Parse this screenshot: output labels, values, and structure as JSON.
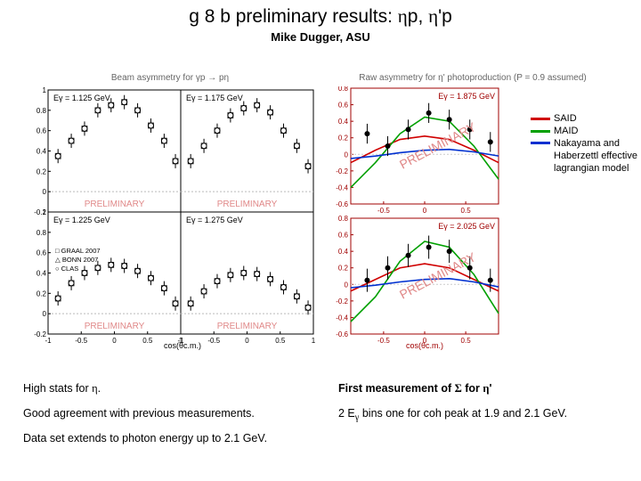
{
  "title": {
    "prefix": "g 8 b preliminary results: ",
    "sym1": "η",
    "mid": "p, ",
    "sym2": "η",
    "tail": "'p"
  },
  "subtitle": "Mike Dugger, ASU",
  "fig_caption_left": "Beam asymmetry for γp → pη",
  "fig_caption_right": "Raw asymmetry for η' photoproduction (P = 0.9 assumed)",
  "legend": {
    "said": {
      "label": "SAID",
      "color": "#d00000"
    },
    "maid": {
      "label": "MAID",
      "color": "#00a000"
    },
    "nh": {
      "label": "Nakayama and Haberzettl effective lagrangian model",
      "color": "#0030d0"
    }
  },
  "bullets_left": [
    "High stats for η.",
    "Good agreement with previous measurements.",
    "Data set extends to photon energy up to 2.1 GeV."
  ],
  "bullets_right": {
    "l1_pre": "First measurement of ",
    "l1_sym": "Σ",
    "l1_mid": " for ",
    "l1_sym2": "η",
    "l1_tail": "'",
    "l2_pre": "2 E",
    "l2_sub": "γ",
    "l2_tail": " bins one for coh peak at 1.9 and 2.1 GeV."
  },
  "left_panel_labels": {
    "p1": "Eγ = 1.125 GeV",
    "p2": "Eγ = 1.175 GeV",
    "p3": "Eγ = 1.225 GeV",
    "p4": "Eγ = 1.275 GeV",
    "prelim": "PRELIMINARY"
  },
  "left_legend_keys": [
    "□  GRAAL 2007",
    "△  BONN 2007",
    "○  CLAS"
  ],
  "left_chart_style": {
    "outer_box_color": "#000000",
    "grid_color": "#bbbbbb",
    "ylim": [
      -0.2,
      1.0
    ],
    "ytick": [
      -0.2,
      0,
      0.2,
      0.4,
      0.6,
      0.8,
      1.0
    ],
    "xlim": [
      -1,
      1
    ],
    "xtick": [
      -1,
      -0.5,
      0,
      0.5,
      1
    ],
    "xlabel": "cos(θc.m.)",
    "axis_fontsize": 8,
    "label_fontsize": 9,
    "prelim_color": "#e08888",
    "prelim_fontsize": 10,
    "marker_size": 3,
    "marker_stroke": "#000000"
  },
  "left_data": {
    "p1": {
      "x": [
        -0.85,
        -0.65,
        -0.45,
        -0.25,
        -0.05,
        0.15,
        0.35,
        0.55,
        0.75,
        0.92
      ],
      "y": [
        0.35,
        0.5,
        0.62,
        0.8,
        0.85,
        0.88,
        0.8,
        0.65,
        0.5,
        0.3
      ],
      "ey": 0.07
    },
    "p2": {
      "x": [
        -0.85,
        -0.65,
        -0.45,
        -0.25,
        -0.05,
        0.15,
        0.35,
        0.55,
        0.75,
        0.92
      ],
      "y": [
        0.3,
        0.45,
        0.6,
        0.75,
        0.82,
        0.85,
        0.78,
        0.6,
        0.45,
        0.25
      ],
      "ey": 0.07
    },
    "p3": {
      "x": [
        -0.85,
        -0.65,
        -0.45,
        -0.25,
        -0.05,
        0.15,
        0.35,
        0.55,
        0.75,
        0.92
      ],
      "y": [
        0.15,
        0.3,
        0.4,
        0.45,
        0.48,
        0.47,
        0.42,
        0.35,
        0.25,
        0.1
      ],
      "ey": 0.07
    },
    "p4": {
      "x": [
        -0.85,
        -0.65,
        -0.45,
        -0.25,
        -0.05,
        0.15,
        0.35,
        0.55,
        0.75,
        0.92
      ],
      "y": [
        0.1,
        0.22,
        0.32,
        0.38,
        0.4,
        0.39,
        0.34,
        0.26,
        0.17,
        0.06
      ],
      "ey": 0.07
    }
  },
  "right_panel_labels": {
    "p1": "Eγ = 1.875 GeV",
    "p2": "Eγ = 2.025 GeV"
  },
  "right_chart_style": {
    "outer_box_color": "#a00000",
    "ylim": [
      -0.6,
      0.8
    ],
    "ytick": [
      -0.6,
      -0.4,
      -0.2,
      0,
      0.2,
      0.4,
      0.6,
      0.8
    ],
    "xlim": [
      -0.9,
      0.9
    ],
    "xtick": [
      -0.5,
      0,
      0.5
    ],
    "xlabel": "cos(θc.m.)",
    "axis_fontsize": 8,
    "label_fontsize": 9,
    "said_color": "#d00000",
    "maid_color": "#00a000",
    "nh_color": "#0030d0",
    "marker_size": 3,
    "marker_stroke": "#000000",
    "prelim_color": "#e08888",
    "prelim_fontsize": 14
  },
  "right_data": {
    "p1": {
      "x": [
        -0.7,
        -0.45,
        -0.2,
        0.05,
        0.3,
        0.55,
        0.8
      ],
      "y": [
        0.25,
        0.1,
        0.3,
        0.5,
        0.42,
        0.3,
        0.15
      ],
      "ey": 0.12,
      "said": {
        "x": [
          -0.9,
          -0.6,
          -0.3,
          0,
          0.3,
          0.6,
          0.9
        ],
        "y": [
          -0.1,
          0.05,
          0.18,
          0.22,
          0.18,
          0.05,
          -0.1
        ]
      },
      "maid": {
        "x": [
          -0.9,
          -0.6,
          -0.3,
          0,
          0.3,
          0.6,
          0.9
        ],
        "y": [
          -0.4,
          -0.1,
          0.25,
          0.45,
          0.4,
          0.1,
          -0.3
        ]
      },
      "nh": {
        "x": [
          -0.9,
          -0.6,
          -0.3,
          0,
          0.3,
          0.6,
          0.9
        ],
        "y": [
          -0.05,
          -0.02,
          0.02,
          0.05,
          0.06,
          0.03,
          -0.02
        ]
      }
    },
    "p2": {
      "x": [
        -0.7,
        -0.45,
        -0.2,
        0.05,
        0.3,
        0.55,
        0.8
      ],
      "y": [
        0.05,
        0.2,
        0.35,
        0.45,
        0.4,
        0.2,
        0.05
      ],
      "ey": 0.14,
      "said": {
        "x": [
          -0.9,
          -0.6,
          -0.3,
          0,
          0.3,
          0.6,
          0.9
        ],
        "y": [
          -0.08,
          0.06,
          0.2,
          0.25,
          0.2,
          0.06,
          -0.08
        ]
      },
      "maid": {
        "x": [
          -0.9,
          -0.6,
          -0.3,
          0,
          0.3,
          0.6,
          0.9
        ],
        "y": [
          -0.45,
          -0.15,
          0.28,
          0.52,
          0.45,
          0.12,
          -0.35
        ]
      },
      "nh": {
        "x": [
          -0.9,
          -0.6,
          -0.3,
          0,
          0.3,
          0.6,
          0.9
        ],
        "y": [
          -0.04,
          -0.01,
          0.03,
          0.06,
          0.07,
          0.03,
          -0.03
        ]
      }
    }
  }
}
